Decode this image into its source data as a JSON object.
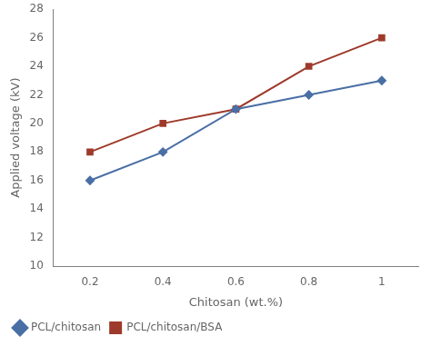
{
  "chart_data": {
    "type": "line",
    "x_label": "Chitosan (wt.%)",
    "y_label": "Applied voltage (kV)",
    "x": [
      0.2,
      0.4,
      0.6,
      0.8,
      1.0
    ],
    "series": [
      {
        "name": "PCL/chitosan",
        "color": "#4A6FA5",
        "marker": "diamond",
        "line_style": "solid",
        "values": [
          16,
          18,
          21,
          22,
          23
        ]
      },
      {
        "name": "PCL/chitosan/BSA",
        "color": "#9E3A2B",
        "marker": "square",
        "line_style": "solid",
        "values": [
          18,
          20,
          21,
          24,
          26
        ]
      }
    ],
    "xlim": [
      0.1,
      1.1
    ],
    "xticks": [
      0.2,
      0.4,
      0.6,
      0.8,
      1
    ],
    "ylim": [
      10,
      28
    ],
    "yticks": [
      10,
      12,
      14,
      16,
      18,
      20,
      22,
      24,
      26,
      28
    ],
    "grid": false,
    "legend": "bottom"
  }
}
